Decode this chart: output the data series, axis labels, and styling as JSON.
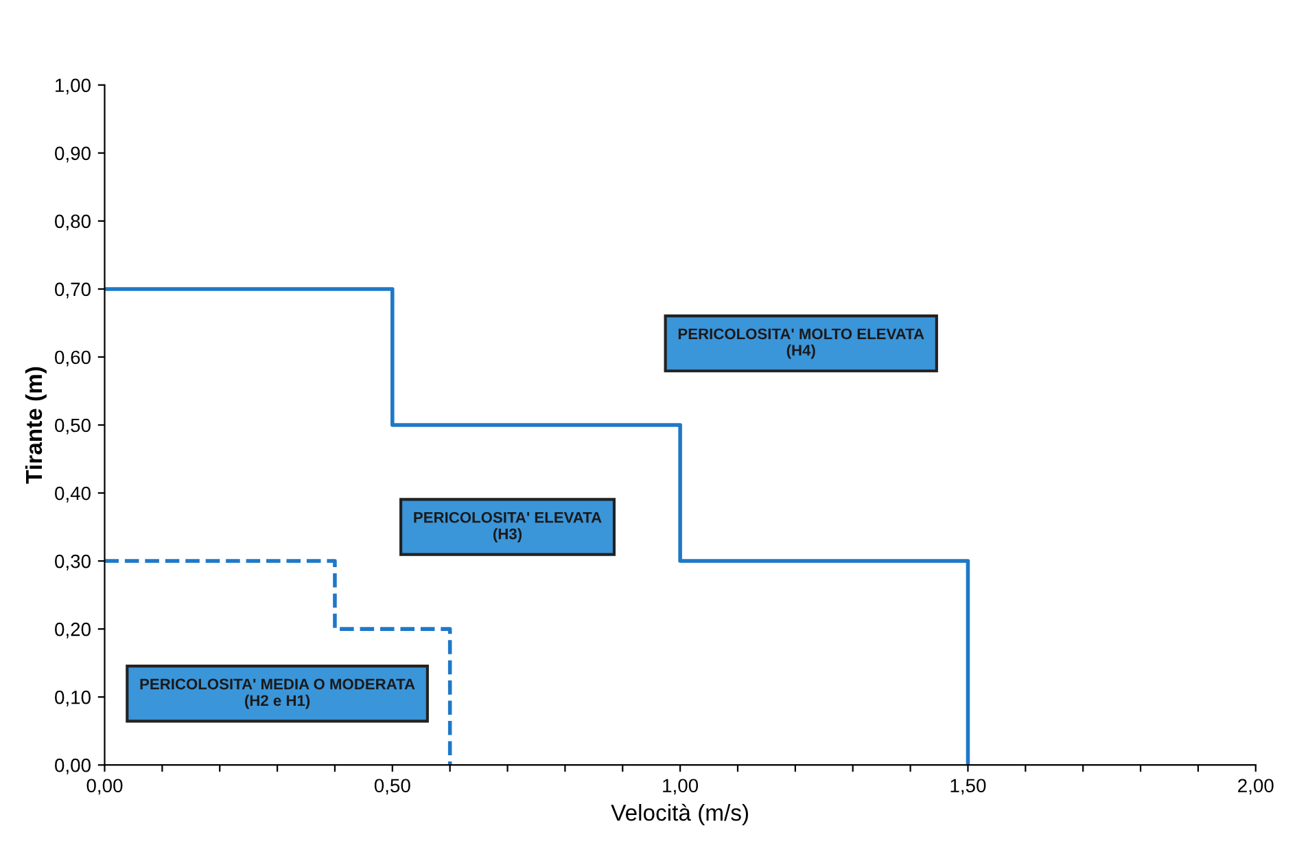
{
  "chart_data": {
    "type": "line",
    "xlabel": "Velocità (m/s)",
    "ylabel": "Tirante (m)",
    "xlim": [
      0,
      2
    ],
    "ylim": [
      0,
      1
    ],
    "xticks": [
      {
        "value": 0,
        "label": "0,00"
      },
      {
        "value": 0.1,
        "label": null
      },
      {
        "value": 0.2,
        "label": null
      },
      {
        "value": 0.3,
        "label": null
      },
      {
        "value": 0.4,
        "label": null
      },
      {
        "value": 0.5,
        "label": "0,50"
      },
      {
        "value": 0.6,
        "label": null
      },
      {
        "value": 0.7,
        "label": null
      },
      {
        "value": 0.8,
        "label": null
      },
      {
        "value": 0.9,
        "label": null
      },
      {
        "value": 1.0,
        "label": "1,00"
      },
      {
        "value": 1.1,
        "label": null
      },
      {
        "value": 1.2,
        "label": null
      },
      {
        "value": 1.3,
        "label": null
      },
      {
        "value": 1.4,
        "label": null
      },
      {
        "value": 1.5,
        "label": "1,50"
      },
      {
        "value": 1.6,
        "label": null
      },
      {
        "value": 1.7,
        "label": null
      },
      {
        "value": 1.8,
        "label": null
      },
      {
        "value": 1.9,
        "label": null
      },
      {
        "value": 2.0,
        "label": "2,00"
      }
    ],
    "yticks": [
      {
        "value": 0,
        "label": "0,00"
      },
      {
        "value": 0.1,
        "label": "0,10"
      },
      {
        "value": 0.2,
        "label": "0,20"
      },
      {
        "value": 0.3,
        "label": "0,30"
      },
      {
        "value": 0.4,
        "label": "0,40"
      },
      {
        "value": 0.5,
        "label": "0,50"
      },
      {
        "value": 0.6,
        "label": "0,60"
      },
      {
        "value": 0.7,
        "label": "0,70"
      },
      {
        "value": 0.8,
        "label": "0,80"
      },
      {
        "value": 0.9,
        "label": "0,90"
      },
      {
        "value": 1.0,
        "label": "1,00"
      }
    ],
    "series": [
      {
        "color": "#1f78c8",
        "line_style": "solid",
        "x": [
          0,
          0.5,
          0.5,
          1.0,
          1.0,
          1.5,
          1.5
        ],
        "values": [
          0.7,
          0.7,
          0.5,
          0.5,
          0.3,
          0.3,
          0
        ]
      },
      {
        "color": "#1f78c8",
        "line_style": "dashed",
        "x": [
          0,
          0.4,
          0.4,
          0.6,
          0.6
        ],
        "values": [
          0.3,
          0.3,
          0.2,
          0.2,
          0
        ]
      }
    ],
    "annotations": [
      "PERICOLOSITA' MEDIA O MODERATA\n(H2 e H1)",
      "PERICOLOSITA' ELEVATA\n(H3)",
      "PERICOLOSITA' MOLTO ELEVATA\n(H4)"
    ],
    "grid": false,
    "legend": false,
    "marker": "none"
  }
}
